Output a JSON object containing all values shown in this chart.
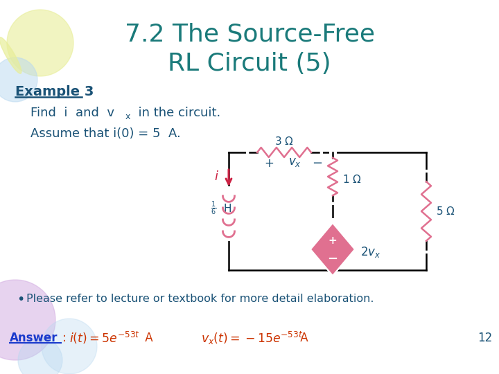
{
  "title_line1": "7.2 The Source-Free",
  "title_line2": "RL Circuit (5)",
  "title_color": "#1a7a7a",
  "title_fontsize": 26,
  "example_label": "Example 3",
  "example_color": "#1a5276",
  "body_color": "#1a5276",
  "bullet_text": "Please refer to lecture or textbook for more detail elaboration.",
  "page_number": "12",
  "bg_color": "#ffffff",
  "circuit_color": "#000000",
  "pink_color": "#e07090",
  "current_color": "#cc2244",
  "diamond_fill": "#e07090",
  "answer_color": "#cc3300",
  "answer_blue": "#1a3acc",
  "balloon_yellow": "#e8ee99",
  "balloon_blue": "#b8d8f0",
  "balloon_purple": "#d0a8e0",
  "cL": 330,
  "cR": 615,
  "cT": 220,
  "cB": 390,
  "cMx": 480
}
